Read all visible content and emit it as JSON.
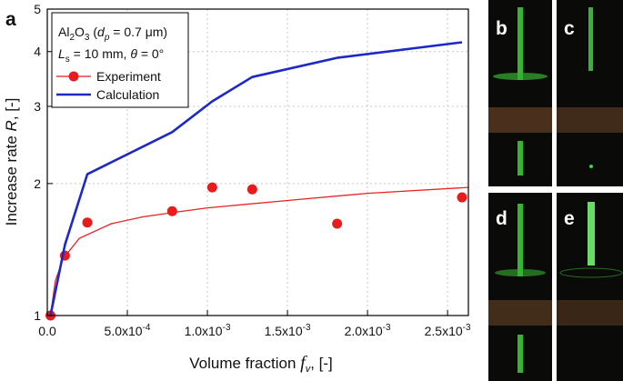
{
  "chart_data": {
    "type": "scatter",
    "panel_labels": [
      "a",
      "b",
      "c",
      "d",
      "e"
    ],
    "xlabel": [
      "Volume fraction ",
      "f",
      "v",
      ", [-]"
    ],
    "ylabel": [
      "Increase rate ",
      "R",
      ", [-]"
    ],
    "annotations": [
      [
        "Al",
        "2",
        "O",
        "3",
        " (",
        "d",
        "p",
        " = 0.7 μm)"
      ],
      [
        "L",
        "s",
        " = 10 mm, ",
        "θ",
        " = 0°"
      ]
    ],
    "xlim": [
      0,
      0.00263
    ],
    "ylim": [
      1,
      5
    ],
    "log_y": true,
    "grid": true,
    "legend": "upper left",
    "xticks": [
      {
        "value": 0,
        "label": "0.0"
      },
      {
        "value": 0.0005,
        "label": "5.0x10",
        "exponent": "-4"
      },
      {
        "value": 0.001,
        "label": "1.0x10",
        "exponent": "-3"
      },
      {
        "value": 0.0015,
        "label": "1.5x10",
        "exponent": "-3"
      },
      {
        "value": 0.002,
        "label": "2.0x10",
        "exponent": "-3"
      },
      {
        "value": 0.0025,
        "label": "2.5x10",
        "exponent": "-3"
      }
    ],
    "yticks": [
      1,
      2,
      3,
      4,
      5
    ],
    "series": [
      {
        "color": "#e82424",
        "style": "curve",
        "x": [
          2e-05,
          5e-05,
          0.0001,
          0.0002,
          0.0004,
          0.0006,
          0.0008,
          0.001,
          0.0015,
          0.002,
          0.00263
        ],
        "values": [
          1.0,
          1.2,
          1.35,
          1.5,
          1.62,
          1.68,
          1.72,
          1.76,
          1.83,
          1.9,
          1.96
        ]
      },
      {
        "name": "Experiment",
        "color": "#e81c1c",
        "style": "marker",
        "x": [
          2e-05,
          0.00011,
          0.00025,
          0.00078,
          0.00103,
          0.00128,
          0.00181,
          0.00259
        ],
        "values": [
          1.0,
          1.37,
          1.63,
          1.73,
          1.96,
          1.94,
          1.62,
          1.86
        ]
      },
      {
        "name": "Calculation",
        "color": "#1c28c8",
        "style": "line",
        "x": [
          2e-05,
          0.00011,
          0.00025,
          0.00078,
          0.00103,
          0.00128,
          0.00181,
          0.00259
        ],
        "values": [
          1.0,
          1.45,
          2.1,
          2.62,
          3.08,
          3.5,
          3.87,
          4.2
        ]
      }
    ]
  }
}
